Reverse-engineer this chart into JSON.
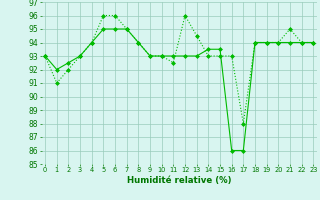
{
  "x": [
    0,
    1,
    2,
    3,
    4,
    5,
    6,
    7,
    8,
    9,
    10,
    11,
    12,
    13,
    14,
    15,
    16,
    17,
    18,
    19,
    20,
    21,
    22,
    23
  ],
  "line1": [
    93,
    91,
    92,
    93,
    94,
    96,
    96,
    95,
    94,
    93,
    93,
    92.5,
    96,
    94.5,
    93,
    93,
    93,
    88,
    94,
    94,
    94,
    95,
    94,
    94
  ],
  "line2": [
    93,
    92,
    92.5,
    93,
    94,
    95,
    95,
    95,
    94,
    93,
    93,
    93,
    93,
    93,
    93.5,
    93.5,
    86,
    86,
    94,
    94,
    94,
    94,
    94,
    94
  ],
  "line1_color": "#00bb00",
  "line2_color": "#00bb00",
  "bg_color": "#d8f5f0",
  "grid_color": "#99ccbb",
  "xlabel": "Humidité relative (%)",
  "ylim": [
    85,
    97
  ],
  "xlim": [
    -0.3,
    23.3
  ],
  "yticks": [
    85,
    86,
    87,
    88,
    89,
    90,
    91,
    92,
    93,
    94,
    95,
    96,
    97
  ],
  "xticks": [
    0,
    1,
    2,
    3,
    4,
    5,
    6,
    7,
    8,
    9,
    10,
    11,
    12,
    13,
    14,
    15,
    16,
    17,
    18,
    19,
    20,
    21,
    22,
    23
  ],
  "ytick_fontsize": 5.5,
  "xtick_fontsize": 4.8,
  "xlabel_fontsize": 6.2,
  "line_width": 0.8,
  "marker_size": 2.0
}
